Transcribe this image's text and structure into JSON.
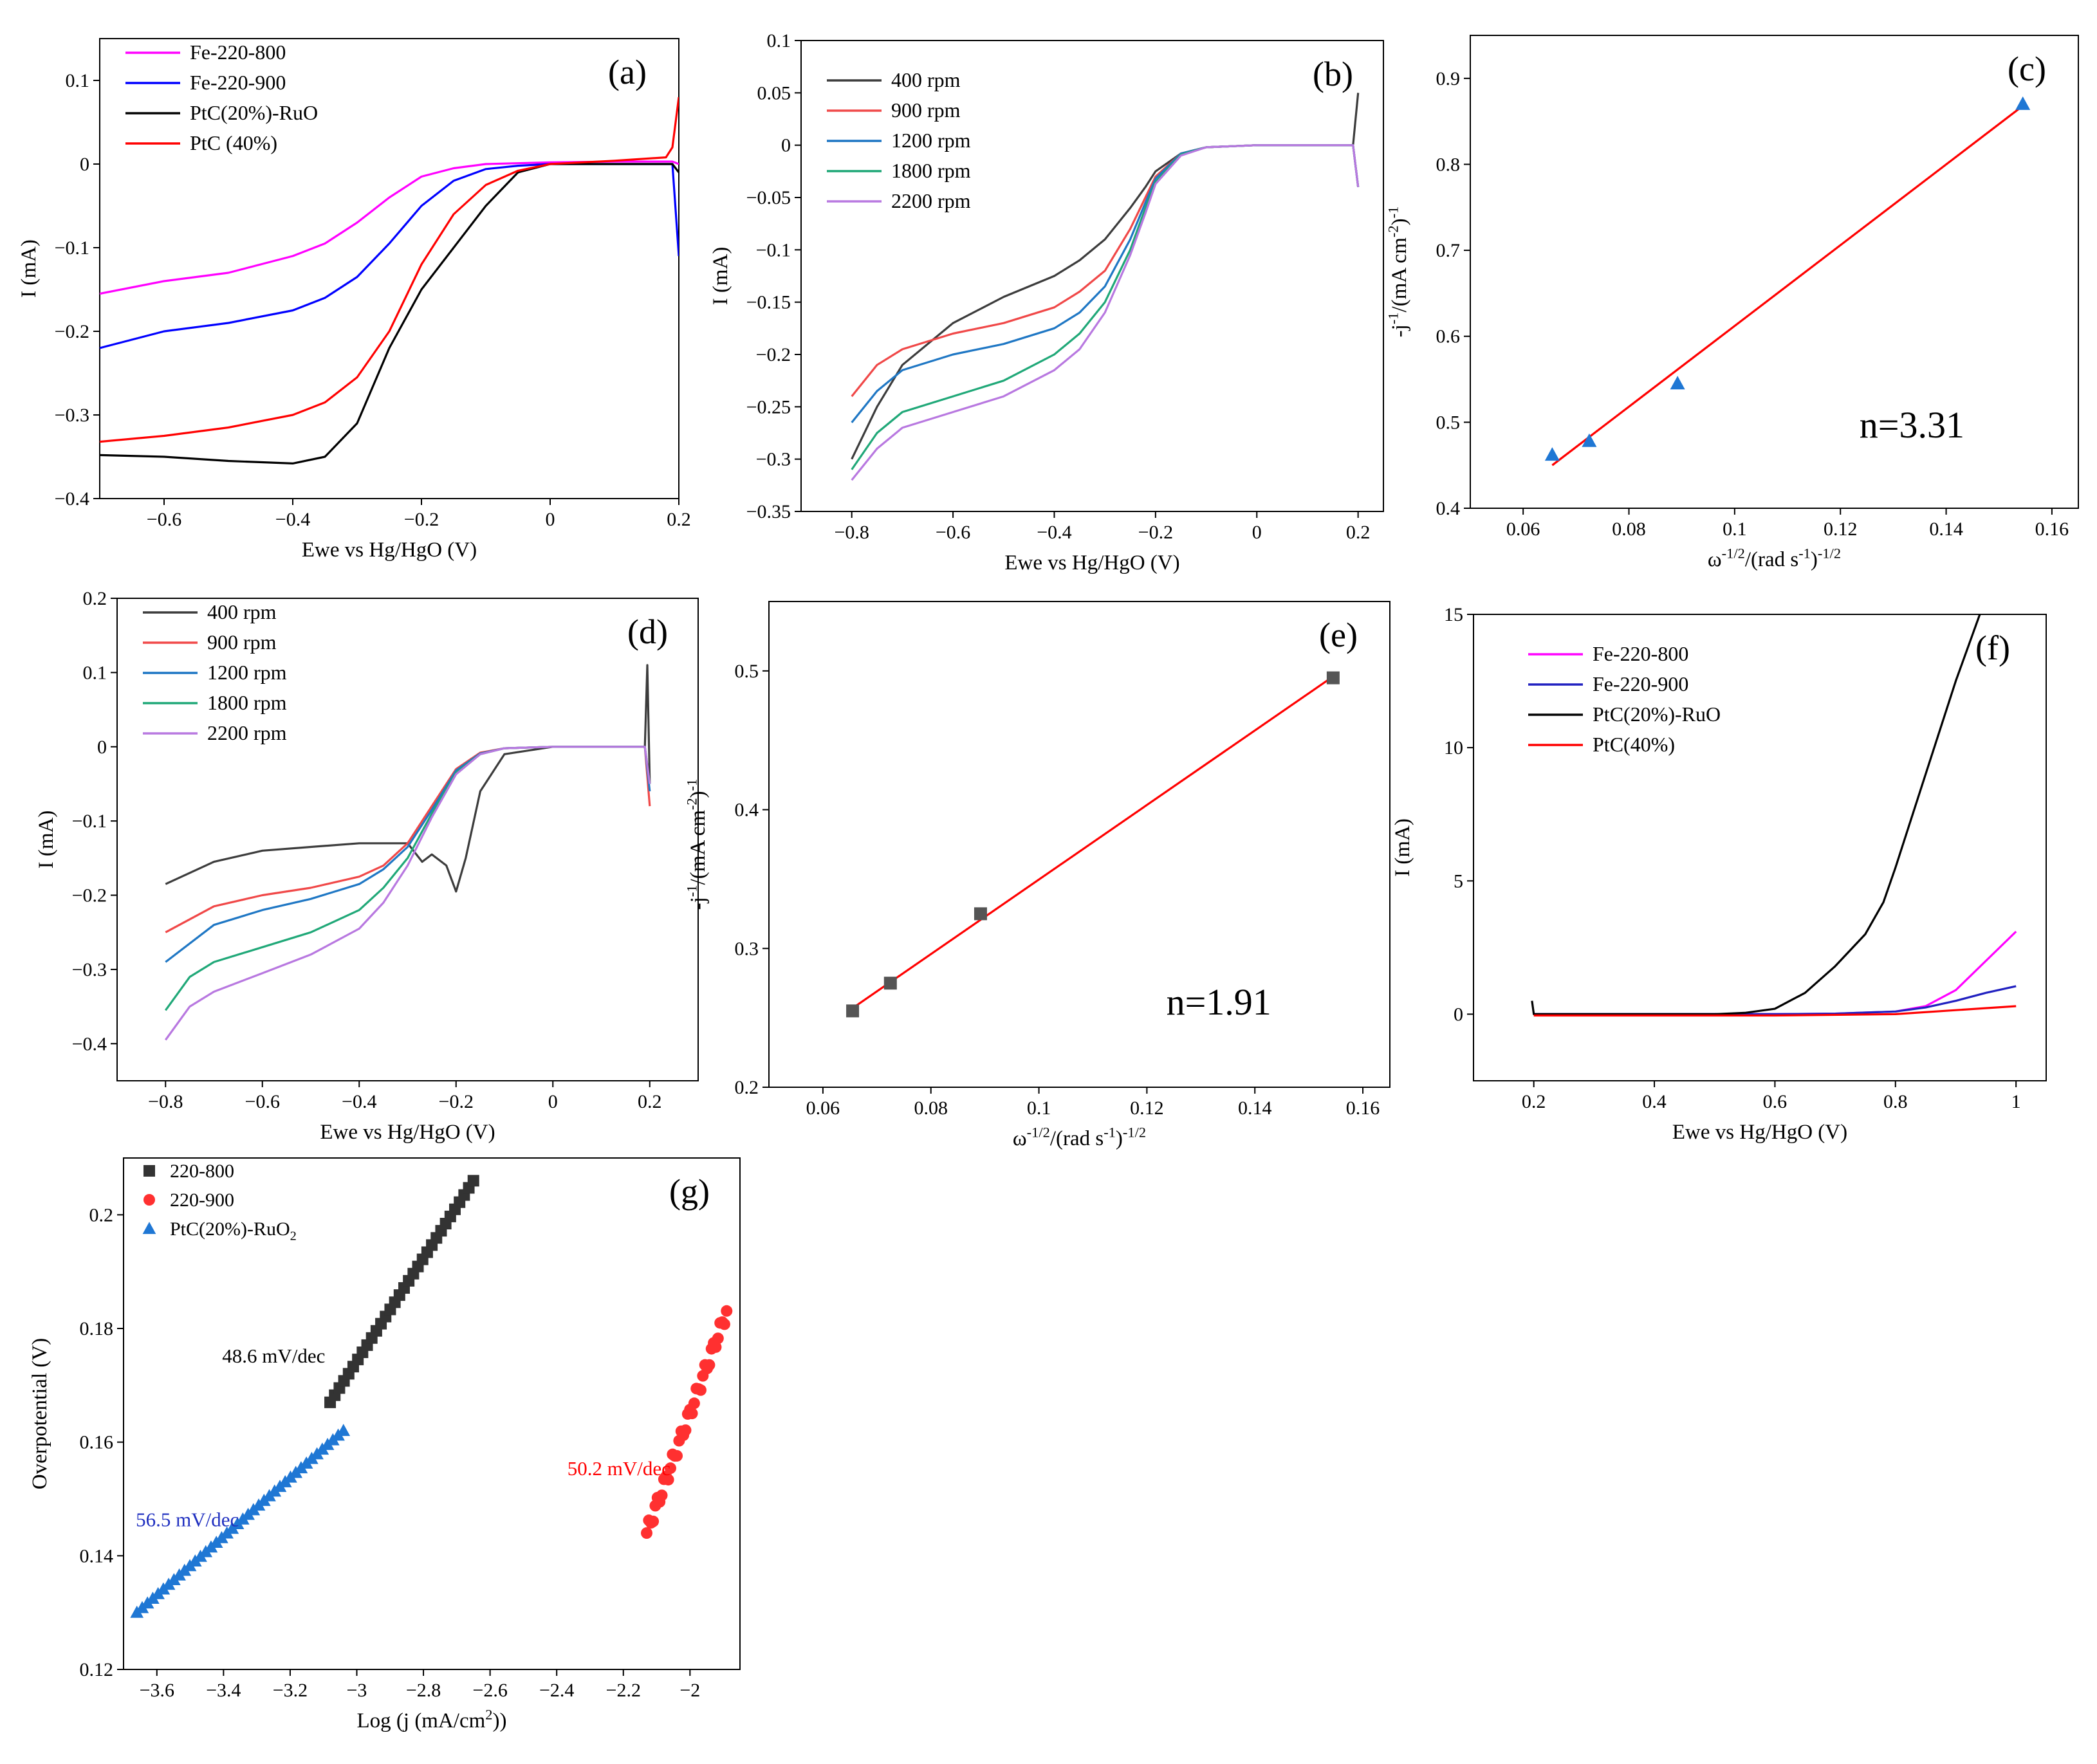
{
  "chart_data": [
    {
      "id": "a",
      "type": "line",
      "panel_label": "(a)",
      "xlabel": "Ewe vs Hg/HgO (V)",
      "ylabel": "I (mA)",
      "xlim": [
        -0.7,
        0.2
      ],
      "ylim": [
        -0.4,
        0.15
      ],
      "xticks": [
        -0.6,
        -0.4,
        -0.2,
        0,
        0.2
      ],
      "xticklabels": [
        "−0.6",
        "−0.4",
        "−0.2",
        "0",
        "0.2"
      ],
      "yticks": [
        -0.4,
        -0.3,
        -0.2,
        -0.1,
        0,
        0.1
      ],
      "yticklabels": [
        "−0.4",
        "−0.3",
        "−0.2",
        "−0.1",
        "0",
        "0.1"
      ],
      "legend": "top-left",
      "series": [
        {
          "name": "Fe-220-800",
          "color": "#ff00ff",
          "x": [
            -0.7,
            -0.6,
            -0.5,
            -0.4,
            -0.35,
            -0.3,
            -0.25,
            -0.2,
            -0.15,
            -0.1,
            0,
            0.1,
            0.19,
            0.2
          ],
          "y": [
            -0.155,
            -0.14,
            -0.13,
            -0.11,
            -0.095,
            -0.07,
            -0.04,
            -0.015,
            -0.005,
            0,
            0.002,
            0.003,
            0.003,
            0.0
          ]
        },
        {
          "name": "Fe-220-900",
          "color": "#0000ff",
          "x": [
            -0.7,
            -0.6,
            -0.5,
            -0.4,
            -0.35,
            -0.3,
            -0.25,
            -0.2,
            -0.15,
            -0.1,
            -0.05,
            0,
            0.1,
            0.19,
            0.2
          ],
          "y": [
            -0.22,
            -0.2,
            -0.19,
            -0.175,
            -0.16,
            -0.135,
            -0.095,
            -0.05,
            -0.02,
            -0.006,
            -0.002,
            0,
            0.0,
            0.0,
            -0.11
          ]
        },
        {
          "name": "PtC(20%)-RuO",
          "color": "#000000",
          "x": [
            -0.7,
            -0.6,
            -0.5,
            -0.4,
            -0.35,
            -0.3,
            -0.25,
            -0.2,
            -0.15,
            -0.1,
            -0.05,
            0,
            0.1,
            0.19,
            0.2
          ],
          "y": [
            -0.348,
            -0.35,
            -0.355,
            -0.358,
            -0.35,
            -0.31,
            -0.22,
            -0.15,
            -0.1,
            -0.05,
            -0.01,
            0,
            0.0,
            0.0,
            -0.01
          ]
        },
        {
          "name": "PtC (40%)",
          "color": "#ff0000",
          "x": [
            -0.7,
            -0.6,
            -0.5,
            -0.4,
            -0.35,
            -0.3,
            -0.25,
            -0.2,
            -0.15,
            -0.1,
            -0.05,
            0,
            0.1,
            0.18,
            0.19,
            0.2
          ],
          "y": [
            -0.332,
            -0.325,
            -0.315,
            -0.3,
            -0.285,
            -0.255,
            -0.2,
            -0.12,
            -0.06,
            -0.025,
            -0.008,
            0,
            0.004,
            0.008,
            0.02,
            0.08
          ]
        }
      ]
    },
    {
      "id": "b",
      "type": "line",
      "panel_label": "(b)",
      "xlabel": "Ewe vs Hg/HgO (V)",
      "ylabel": "I (mA)",
      "xlim": [
        -0.9,
        0.25
      ],
      "ylim": [
        -0.35,
        0.1
      ],
      "xticks": [
        -0.8,
        -0.6,
        -0.4,
        -0.2,
        0,
        0.2
      ],
      "xticklabels": [
        "−0.8",
        "−0.6",
        "−0.4",
        "−0.2",
        "0",
        "0.2"
      ],
      "yticks": [
        -0.35,
        -0.3,
        -0.25,
        -0.2,
        -0.15,
        -0.1,
        -0.05,
        0,
        0.05,
        0.1
      ],
      "yticklabels": [
        "−0.35",
        "−0.3",
        "−0.25",
        "−0.2",
        "−0.15",
        "−0.1",
        "−0.05",
        "0",
        "0.05",
        "0.1"
      ],
      "legend": "top-left",
      "series": [
        {
          "name": "400 rpm",
          "color": "#3c3c3c",
          "x": [
            -0.8,
            -0.75,
            -0.7,
            -0.6,
            -0.5,
            -0.4,
            -0.35,
            -0.3,
            -0.25,
            -0.22,
            -0.2,
            -0.15,
            -0.1,
            0,
            0.1,
            0.19,
            0.2
          ],
          "y": [
            -0.3,
            -0.25,
            -0.21,
            -0.17,
            -0.145,
            -0.125,
            -0.11,
            -0.09,
            -0.06,
            -0.04,
            -0.025,
            -0.008,
            -0.002,
            0,
            0.0,
            0.0,
            0.05
          ]
        },
        {
          "name": "900 rpm",
          "color": "#f04848",
          "x": [
            -0.8,
            -0.75,
            -0.7,
            -0.6,
            -0.5,
            -0.4,
            -0.35,
            -0.3,
            -0.25,
            -0.22,
            -0.2,
            -0.15,
            -0.1,
            0,
            0.1,
            0.19,
            0.2
          ],
          "y": [
            -0.24,
            -0.21,
            -0.195,
            -0.18,
            -0.17,
            -0.155,
            -0.14,
            -0.12,
            -0.08,
            -0.05,
            -0.03,
            -0.008,
            -0.002,
            0,
            0.0,
            0.0,
            -0.04
          ]
        },
        {
          "name": "1200 rpm",
          "color": "#1f77c4",
          "x": [
            -0.8,
            -0.75,
            -0.7,
            -0.6,
            -0.5,
            -0.4,
            -0.35,
            -0.3,
            -0.25,
            -0.22,
            -0.2,
            -0.15,
            -0.1,
            0,
            0.1,
            0.19,
            0.2
          ],
          "y": [
            -0.265,
            -0.235,
            -0.215,
            -0.2,
            -0.19,
            -0.175,
            -0.16,
            -0.135,
            -0.09,
            -0.055,
            -0.032,
            -0.008,
            -0.002,
            0,
            0.0,
            0.0,
            -0.04
          ]
        },
        {
          "name": "1800 rpm",
          "color": "#20a878",
          "x": [
            -0.8,
            -0.75,
            -0.7,
            -0.6,
            -0.5,
            -0.4,
            -0.35,
            -0.3,
            -0.25,
            -0.22,
            -0.2,
            -0.15,
            -0.1,
            0,
            0.1,
            0.19,
            0.2
          ],
          "y": [
            -0.31,
            -0.275,
            -0.255,
            -0.24,
            -0.225,
            -0.2,
            -0.18,
            -0.15,
            -0.1,
            -0.06,
            -0.035,
            -0.009,
            -0.002,
            0,
            0.0,
            0.0,
            -0.04
          ]
        },
        {
          "name": "2200 rpm",
          "color": "#b878e0",
          "x": [
            -0.8,
            -0.75,
            -0.7,
            -0.6,
            -0.5,
            -0.4,
            -0.35,
            -0.3,
            -0.25,
            -0.22,
            -0.2,
            -0.15,
            -0.1,
            0,
            0.1,
            0.19,
            0.2
          ],
          "y": [
            -0.32,
            -0.29,
            -0.27,
            -0.255,
            -0.24,
            -0.215,
            -0.195,
            -0.16,
            -0.105,
            -0.065,
            -0.037,
            -0.01,
            -0.002,
            0,
            0.0,
            0.0,
            -0.04
          ]
        }
      ]
    },
    {
      "id": "c",
      "type": "scatter",
      "panel_label": "(c)",
      "xlabel": "ω-1/2/(rad s-1)-1/2",
      "ylabel": "-j-1/(mA cm-2)-1",
      "xlim": [
        0.05,
        0.165
      ],
      "ylim": [
        0.4,
        0.95
      ],
      "xticks": [
        0.06,
        0.08,
        0.1,
        0.12,
        0.14,
        0.16
      ],
      "xticklabels": [
        "0.06",
        "0.08",
        "0.1",
        "0.12",
        "0.14",
        "0.16"
      ],
      "yticks": [
        0.4,
        0.5,
        0.6,
        0.7,
        0.8,
        0.9
      ],
      "yticklabels": [
        "0.4",
        "0.5",
        "0.6",
        "0.7",
        "0.8",
        "0.9"
      ],
      "points": {
        "x": [
          0.0655,
          0.0725,
          0.0892,
          0.1545
        ],
        "y": [
          0.462,
          0.478,
          0.545,
          0.87
        ],
        "color": "#1f77d4",
        "marker": "triangle"
      },
      "fit": {
        "x": [
          0.0655,
          0.1545
        ],
        "y": [
          0.45,
          0.868
        ],
        "color": "#ff0000"
      },
      "annotation": "n=3.31"
    },
    {
      "id": "d",
      "type": "line",
      "panel_label": "(d)",
      "xlabel": "Ewe vs Hg/HgO (V)",
      "ylabel": "I (mA)",
      "xlim": [
        -0.9,
        0.3
      ],
      "ylim": [
        -0.45,
        0.2
      ],
      "xticks": [
        -0.8,
        -0.6,
        -0.4,
        -0.2,
        0,
        0.2
      ],
      "xticklabels": [
        "−0.8",
        "−0.6",
        "−0.4",
        "−0.2",
        "0",
        "0.2"
      ],
      "yticks": [
        -0.4,
        -0.3,
        -0.2,
        -0.1,
        0,
        0.1,
        0.2
      ],
      "yticklabels": [
        "−0.4",
        "−0.3",
        "−0.2",
        "−0.1",
        "0",
        "0.1",
        "0.2"
      ],
      "legend": "top-left",
      "series": [
        {
          "name": "400 rpm",
          "color": "#3c3c3c",
          "x": [
            -0.8,
            -0.7,
            -0.6,
            -0.5,
            -0.4,
            -0.3,
            -0.27,
            -0.25,
            -0.22,
            -0.2,
            -0.18,
            -0.15,
            -0.1,
            0,
            0.1,
            0.19,
            0.195,
            0.2
          ],
          "y": [
            -0.185,
            -0.155,
            -0.14,
            -0.135,
            -0.13,
            -0.13,
            -0.155,
            -0.145,
            -0.16,
            -0.195,
            -0.15,
            -0.06,
            -0.01,
            0,
            0.0,
            0.0,
            0.11,
            -0.05
          ]
        },
        {
          "name": "900 rpm",
          "color": "#f04848",
          "x": [
            -0.8,
            -0.7,
            -0.6,
            -0.5,
            -0.4,
            -0.35,
            -0.3,
            -0.25,
            -0.2,
            -0.15,
            -0.1,
            0,
            0.1,
            0.19,
            0.2
          ],
          "y": [
            -0.25,
            -0.215,
            -0.2,
            -0.19,
            -0.175,
            -0.16,
            -0.13,
            -0.08,
            -0.03,
            -0.008,
            -0.002,
            0,
            0.0,
            0.0,
            -0.08
          ]
        },
        {
          "name": "1200 rpm",
          "color": "#1f77c4",
          "x": [
            -0.8,
            -0.7,
            -0.6,
            -0.5,
            -0.4,
            -0.35,
            -0.3,
            -0.25,
            -0.2,
            -0.15,
            -0.1,
            0,
            0.1,
            0.19,
            0.2
          ],
          "y": [
            -0.29,
            -0.24,
            -0.22,
            -0.205,
            -0.185,
            -0.165,
            -0.135,
            -0.085,
            -0.032,
            -0.009,
            -0.002,
            0,
            0.0,
            0.0,
            -0.06
          ]
        },
        {
          "name": "1800 rpm",
          "color": "#20a878",
          "x": [
            -0.8,
            -0.75,
            -0.7,
            -0.6,
            -0.5,
            -0.4,
            -0.35,
            -0.3,
            -0.25,
            -0.2,
            -0.15,
            -0.1,
            0,
            0.1,
            0.19,
            0.2
          ],
          "y": [
            -0.355,
            -0.31,
            -0.29,
            -0.27,
            -0.25,
            -0.22,
            -0.19,
            -0.15,
            -0.09,
            -0.035,
            -0.01,
            -0.002,
            0,
            0.0,
            0.0,
            -0.05
          ]
        },
        {
          "name": "2200 rpm",
          "color": "#b878e0",
          "x": [
            -0.8,
            -0.75,
            -0.7,
            -0.6,
            -0.5,
            -0.4,
            -0.35,
            -0.3,
            -0.25,
            -0.2,
            -0.15,
            -0.1,
            0,
            0.1,
            0.19,
            0.2
          ],
          "y": [
            -0.395,
            -0.35,
            -0.33,
            -0.305,
            -0.28,
            -0.245,
            -0.21,
            -0.16,
            -0.095,
            -0.037,
            -0.01,
            -0.002,
            0,
            0.0,
            0.0,
            -0.05
          ]
        }
      ]
    },
    {
      "id": "e",
      "type": "scatter",
      "panel_label": "(e)",
      "xlabel": "ω-1/2/(rad s-1)-1/2",
      "ylabel": "-j-1/(mA cm-2)-1",
      "xlim": [
        0.05,
        0.165
      ],
      "ylim": [
        0.2,
        0.55
      ],
      "xticks": [
        0.06,
        0.08,
        0.1,
        0.12,
        0.14,
        0.16
      ],
      "xticklabels": [
        "0.06",
        "0.08",
        "0.1",
        "0.12",
        "0.14",
        "0.16"
      ],
      "yticks": [
        0.2,
        0.3,
        0.4,
        0.5
      ],
      "yticklabels": [
        "0.2",
        "0.3",
        "0.4",
        "0.5"
      ],
      "points": {
        "x": [
          0.0655,
          0.0725,
          0.0892,
          0.1545
        ],
        "y": [
          0.255,
          0.275,
          0.325,
          0.495
        ],
        "color": "#555555",
        "marker": "square"
      },
      "fit": {
        "x": [
          0.0655,
          0.1545
        ],
        "y": [
          0.257,
          0.496
        ],
        "color": "#ff0000"
      },
      "annotation": "n=1.91"
    },
    {
      "id": "f",
      "type": "line",
      "panel_label": "(f)",
      "xlabel": "Ewe vs Hg/HgO (V)",
      "ylabel": "I (mA)",
      "xlim": [
        0.1,
        1.05
      ],
      "ylim": [
        -2.5,
        15
      ],
      "xticks": [
        0.2,
        0.4,
        0.6,
        0.8,
        1
      ],
      "xticklabels": [
        "0.2",
        "0.4",
        "0.6",
        "0.8",
        "1"
      ],
      "yticks": [
        0,
        5,
        10,
        15
      ],
      "yticklabels": [
        "0",
        "5",
        "10",
        "15"
      ],
      "legend": "top-left",
      "series": [
        {
          "name": "Fe-220-800",
          "color": "#ff00ff",
          "x": [
            0.2,
            0.4,
            0.6,
            0.7,
            0.8,
            0.85,
            0.9,
            0.95,
            1.0
          ],
          "y": [
            0,
            0,
            0,
            0.02,
            0.1,
            0.3,
            0.9,
            2.0,
            3.1
          ]
        },
        {
          "name": "Fe-220-900",
          "color": "#2020c0",
          "x": [
            0.2,
            0.4,
            0.6,
            0.7,
            0.8,
            0.85,
            0.9,
            0.95,
            1.0
          ],
          "y": [
            0,
            0,
            0,
            0.02,
            0.1,
            0.25,
            0.5,
            0.8,
            1.05
          ]
        },
        {
          "name": "PtC(20%)-RuO",
          "color": "#000000",
          "x": [
            0.197,
            0.2,
            0.3,
            0.4,
            0.5,
            0.55,
            0.6,
            0.65,
            0.7,
            0.75,
            0.78,
            0.8,
            0.85,
            0.9,
            0.94
          ],
          "y": [
            0.5,
            0,
            0,
            0,
            0,
            0.05,
            0.2,
            0.8,
            1.8,
            3.0,
            4.2,
            5.5,
            9.0,
            12.5,
            15.0
          ]
        },
        {
          "name": "PtC(40%)",
          "color": "#ff0000",
          "x": [
            0.2,
            0.4,
            0.6,
            0.8,
            0.9,
            1.0
          ],
          "y": [
            -0.05,
            -0.05,
            -0.05,
            0.0,
            0.15,
            0.3
          ]
        }
      ]
    },
    {
      "id": "g",
      "type": "scatter",
      "panel_label": "(g)",
      "xlabel": "Log (j (mA/cm2))",
      "ylabel": "Overpotential (V)",
      "xlim": [
        -3.7,
        -1.85
      ],
      "ylim": [
        0.12,
        0.21
      ],
      "xticks": [
        -3.6,
        -3.4,
        -3.2,
        -3.0,
        -2.8,
        -2.6,
        -2.4,
        -2.2,
        -2.0
      ],
      "xticklabels": [
        "−3.6",
        "−3.4",
        "−3.2",
        "−3",
        "−2.8",
        "−2.6",
        "−2.4",
        "−2.2",
        "−2"
      ],
      "yticks": [
        0.12,
        0.14,
        0.16,
        0.18,
        0.2
      ],
      "yticklabels": [
        "0.12",
        "0.14",
        "0.16",
        "0.18",
        "0.2"
      ],
      "legend": "top-left",
      "series": [
        {
          "name": "220-800",
          "color": "#333333",
          "marker": "square",
          "x_range": [
            -3.08,
            -2.65
          ],
          "y_range": [
            0.167,
            0.206
          ],
          "count": 32
        },
        {
          "name": "220-900",
          "color": "#ff3030",
          "marker": "circle",
          "x_range": [
            -2.13,
            -1.89
          ],
          "y_range": [
            0.144,
            0.183
          ],
          "count": 38
        },
        {
          "name": "PtC(20%)-RuO2",
          "color": "#1f77d4",
          "marker": "triangle",
          "x_range": [
            -3.66,
            -3.04
          ],
          "y_range": [
            0.13,
            0.162
          ],
          "count": 40
        }
      ],
      "annotations": [
        {
          "text": "48.6 mV/dec",
          "color": "#000000"
        },
        {
          "text": "50.2 mV/dec",
          "color": "#ff0000"
        },
        {
          "text": "56.5 mV/dec",
          "color": "#2030c0"
        }
      ]
    }
  ]
}
